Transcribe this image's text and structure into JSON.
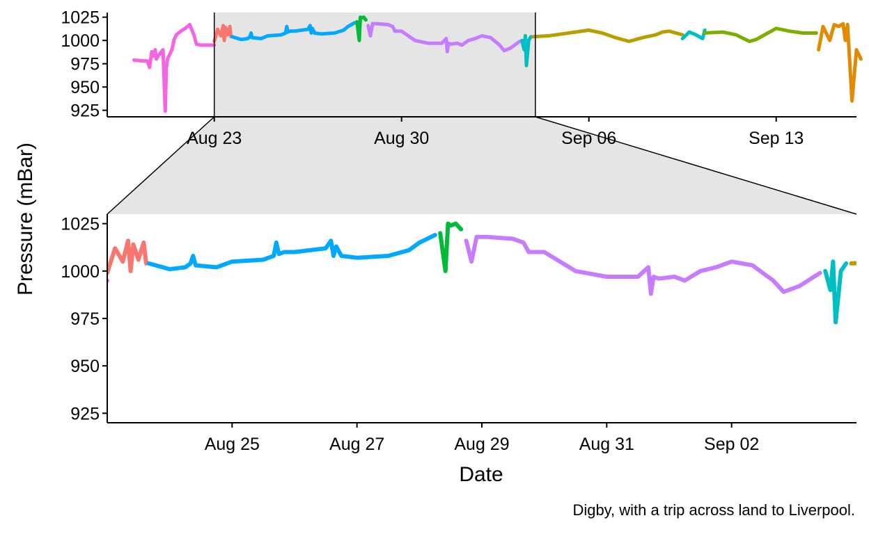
{
  "chart_data": {
    "type": "line",
    "ylabel": "Pressure (mBar)",
    "xlabel": "Date",
    "caption": "Digby, with a trip across land to Liverpool.",
    "grid": false,
    "legend": "none",
    "overview": {
      "xlim": [
        "2024-08-19",
        "2024-09-16"
      ],
      "ylim": [
        918,
        1030
      ],
      "x_ticks": [
        {
          "date": "2024-08-23",
          "label": "Aug 23"
        },
        {
          "date": "2024-08-30",
          "label": "Aug 30"
        },
        {
          "date": "2024-09-06",
          "label": "Sep 06"
        },
        {
          "date": "2024-09-13",
          "label": "Sep 13"
        }
      ],
      "y_ticks": [
        {
          "value": 925,
          "label": "925"
        },
        {
          "value": 950,
          "label": "950"
        },
        {
          "value": 975,
          "label": "975"
        },
        {
          "value": 1000,
          "label": "1000"
        },
        {
          "value": 1025,
          "label": "1025"
        }
      ],
      "highlight_range": [
        "2024-08-23",
        "2024-09-04"
      ]
    },
    "zoom": {
      "xlim": [
        "2024-08-23",
        "2024-09-04"
      ],
      "ylim": [
        920,
        1030
      ],
      "x_ticks": [
        {
          "date": "2024-08-25",
          "label": "Aug 25"
        },
        {
          "date": "2024-08-27",
          "label": "Aug 27"
        },
        {
          "date": "2024-08-29",
          "label": "Aug 29"
        },
        {
          "date": "2024-08-31",
          "label": "Aug 31"
        },
        {
          "date": "2024-09-02",
          "label": "Sep 02"
        }
      ],
      "y_ticks": [
        {
          "value": 925,
          "label": "925"
        },
        {
          "value": 950,
          "label": "950"
        },
        {
          "value": 975,
          "label": "975"
        },
        {
          "value": 1000,
          "label": "1000"
        },
        {
          "value": 1025,
          "label": "1025"
        }
      ]
    },
    "series": [
      {
        "color": "#f564e3",
        "x": [
          "2024-08-20 00:00",
          "2024-08-20 08:00",
          "2024-08-20 12:00",
          "2024-08-20 14:00",
          "2024-08-20 16:00",
          "2024-08-20 18:00",
          "2024-08-20 19:00",
          "2024-08-20 20:00",
          "2024-08-20 22:00",
          "2024-08-21 02:00",
          "2024-08-21 04:00",
          "2024-08-21 05:00",
          "2024-08-21 06:00",
          "2024-08-21 10:00",
          "2024-08-21 12:00",
          "2024-08-21 14:00",
          "2024-08-21 18:00",
          "2024-08-21 22:00",
          "2024-08-22 02:00",
          "2024-08-22 06:00",
          "2024-08-22 08:00",
          "2024-08-22 12:00",
          "2024-08-22 18:00",
          "2024-08-23 00:00"
        ],
        "y": [
          979,
          978,
          978,
          971,
          988,
          983,
          990,
          980,
          984,
          990,
          924,
          970,
          980,
          990,
          1001,
          1006,
          1010,
          1013,
          1017,
          1005,
          996,
          995,
          995,
          995
        ]
      },
      {
        "color": "#f8766d",
        "x": [
          "2024-08-23 00:00",
          "2024-08-23 03:00",
          "2024-08-23 06:00",
          "2024-08-23 08:00",
          "2024-08-23 09:00",
          "2024-08-23 10:00",
          "2024-08-23 12:00",
          "2024-08-23 14:00",
          "2024-08-23 15:00"
        ],
        "y": [
          999,
          1012,
          1005,
          1016,
          1000,
          1014,
          1006,
          1015,
          1004
        ]
      },
      {
        "color": "#00a9ff",
        "x": [
          "2024-08-23 16:00",
          "2024-08-24 00:00",
          "2024-08-24 06:00",
          "2024-08-24 08:00",
          "2024-08-24 09:00",
          "2024-08-24 10:00",
          "2024-08-24 18:00",
          "2024-08-25 00:00",
          "2024-08-25 12:00",
          "2024-08-25 16:00",
          "2024-08-25 17:00",
          "2024-08-25 18:00",
          "2024-08-25 20:00",
          "2024-08-26 00:00",
          "2024-08-26 12:00",
          "2024-08-26 14:00",
          "2024-08-26 15:00",
          "2024-08-26 16:00",
          "2024-08-26 18:00",
          "2024-08-27 00:00",
          "2024-08-27 12:00",
          "2024-08-27 20:00",
          "2024-08-28 00:00",
          "2024-08-28 06:00"
        ],
        "y": [
          1004,
          1001,
          1002,
          1004,
          1008,
          1003,
          1002,
          1005,
          1006,
          1008,
          1015,
          1009,
          1010,
          1010,
          1012,
          1016,
          1008,
          1013,
          1008,
          1007,
          1008,
          1011,
          1015,
          1019
        ]
      },
      {
        "color": "#00ba38",
        "x": [
          "2024-08-28 08:00",
          "2024-08-28 10:00",
          "2024-08-28 11:00",
          "2024-08-28 12:00",
          "2024-08-28 14:00",
          "2024-08-28 16:00"
        ],
        "y": [
          1020,
          1000,
          1025,
          1024,
          1025,
          1022
        ]
      },
      {
        "color": "#c77cff",
        "x": [
          "2024-08-28 18:00",
          "2024-08-28 20:00",
          "2024-08-28 22:00",
          "2024-08-29 02:00",
          "2024-08-29 12:00",
          "2024-08-29 16:00",
          "2024-08-29 18:00",
          "2024-08-30 00:00",
          "2024-08-30 12:00",
          "2024-08-31 00:00",
          "2024-08-31 12:00",
          "2024-08-31 16:00",
          "2024-08-31 17:00",
          "2024-08-31 18:00",
          "2024-08-31 20:00",
          "2024-09-01 02:00",
          "2024-09-01 06:00",
          "2024-09-01 12:00",
          "2024-09-01 18:00",
          "2024-09-02 00:00",
          "2024-09-02 08:00",
          "2024-09-02 16:00",
          "2024-09-02 20:00",
          "2024-09-03 02:00",
          "2024-09-03 10:00"
        ],
        "y": [
          1016,
          1005,
          1018,
          1018,
          1017,
          1015,
          1010,
          1010,
          1000,
          997,
          997,
          1002,
          988,
          997,
          996,
          997,
          995,
          1000,
          1002,
          1005,
          1003,
          995,
          989,
          992,
          999
        ]
      },
      {
        "color": "#00bfc4",
        "x": [
          "2024-09-03 12:00",
          "2024-09-03 14:00",
          "2024-09-03 15:00",
          "2024-09-03 16:00",
          "2024-09-03 18:00",
          "2024-09-03 20:00"
        ],
        "y": [
          1000,
          990,
          1005,
          973,
          1000,
          1004
        ]
      },
      {
        "color": "#b79f00",
        "x": [
          "2024-09-03 22:00",
          "2024-09-04 12:00",
          "2024-09-05 00:00",
          "2024-09-05 12:00",
          "2024-09-06 00:00",
          "2024-09-06 12:00",
          "2024-09-07 00:00",
          "2024-09-07 12:00",
          "2024-09-08 00:00",
          "2024-09-08 12:00",
          "2024-09-08 18:00",
          "2024-09-09 00:00",
          "2024-09-09 12:00"
        ],
        "y": [
          1004,
          1005,
          1007,
          1009,
          1011,
          1008,
          1003,
          999,
          1003,
          1006,
          1009,
          1010,
          1006
        ]
      },
      {
        "color": "#00bfc4",
        "x": [
          "2024-09-09 12:00",
          "2024-09-09 18:00",
          "2024-09-10 00:00",
          "2024-09-10 06:00",
          "2024-09-10 08:00"
        ],
        "y": [
          1002,
          1009,
          1006,
          1002,
          1011
        ]
      },
      {
        "color": "#7cae00",
        "x": [
          "2024-09-10 08:00",
          "2024-09-11 00:00",
          "2024-09-11 12:00",
          "2024-09-12 00:00",
          "2024-09-12 06:00",
          "2024-09-12 12:00",
          "2024-09-13 00:00",
          "2024-09-13 12:00",
          "2024-09-14 00:00",
          "2024-09-14 12:00"
        ],
        "y": [
          1008,
          1009,
          1006,
          999,
          1001,
          1005,
          1013,
          1010,
          1008,
          1008
        ]
      },
      {
        "color": "#e08b00",
        "x": [
          "2024-09-14 14:00",
          "2024-09-14 18:00",
          "2024-09-15 00:00",
          "2024-09-15 04:00",
          "2024-09-15 08:00",
          "2024-09-15 12:00",
          "2024-09-15 14:00",
          "2024-09-15 16:00",
          "2024-09-15 20:00",
          "2024-09-16 00:00",
          "2024-09-16 04:00"
        ],
        "y": [
          990,
          1015,
          1000,
          1017,
          1015,
          1018,
          1000,
          1017,
          935,
          990,
          980
        ]
      }
    ]
  }
}
